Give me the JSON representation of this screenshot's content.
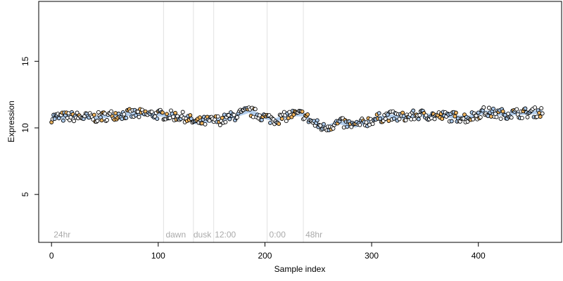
{
  "chart_data": {
    "type": "scatter",
    "title": "",
    "xlabel": "Sample index",
    "ylabel": "Expression",
    "xlim": [
      -12,
      478
    ],
    "ylim": [
      1.4,
      19.5
    ],
    "xticks": [
      0,
      100,
      200,
      300,
      400
    ],
    "yticks": [
      5,
      10,
      15
    ],
    "grid": false,
    "legend": "none",
    "point_colors": {
      "light": "#aac8ea",
      "orange": "#f2b660",
      "white": "#ffffff"
    },
    "vlines": [
      105,
      133,
      152,
      202,
      236
    ],
    "annotations": [
      {
        "text": "24hr",
        "x": 2
      },
      {
        "text": "dawn",
        "x": 107
      },
      {
        "text": "dusk",
        "x": 133
      },
      {
        "text": "12:00",
        "x": 153
      },
      {
        "text": "0:00",
        "x": 204
      },
      {
        "text": "48hr",
        "x": 238
      }
    ],
    "trend": [
      [
        0,
        10.8
      ],
      [
        20,
        10.85
      ],
      [
        40,
        10.75
      ],
      [
        60,
        11.0
      ],
      [
        80,
        11.05
      ],
      [
        100,
        11.0
      ],
      [
        110,
        10.95
      ],
      [
        125,
        10.8
      ],
      [
        135,
        10.4
      ],
      [
        145,
        10.5
      ],
      [
        160,
        10.6
      ],
      [
        175,
        11.0
      ],
      [
        185,
        11.25
      ],
      [
        200,
        10.8
      ],
      [
        210,
        10.6
      ],
      [
        225,
        11.0
      ],
      [
        236,
        11.0
      ],
      [
        245,
        10.4
      ],
      [
        255,
        10.0
      ],
      [
        270,
        10.4
      ],
      [
        285,
        10.15
      ],
      [
        300,
        10.6
      ],
      [
        315,
        10.9
      ],
      [
        330,
        10.8
      ],
      [
        345,
        11.0
      ],
      [
        360,
        10.9
      ],
      [
        375,
        10.85
      ],
      [
        390,
        10.75
      ],
      [
        405,
        11.2
      ],
      [
        420,
        11.05
      ],
      [
        440,
        11.1
      ],
      [
        460,
        11.2
      ]
    ]
  }
}
